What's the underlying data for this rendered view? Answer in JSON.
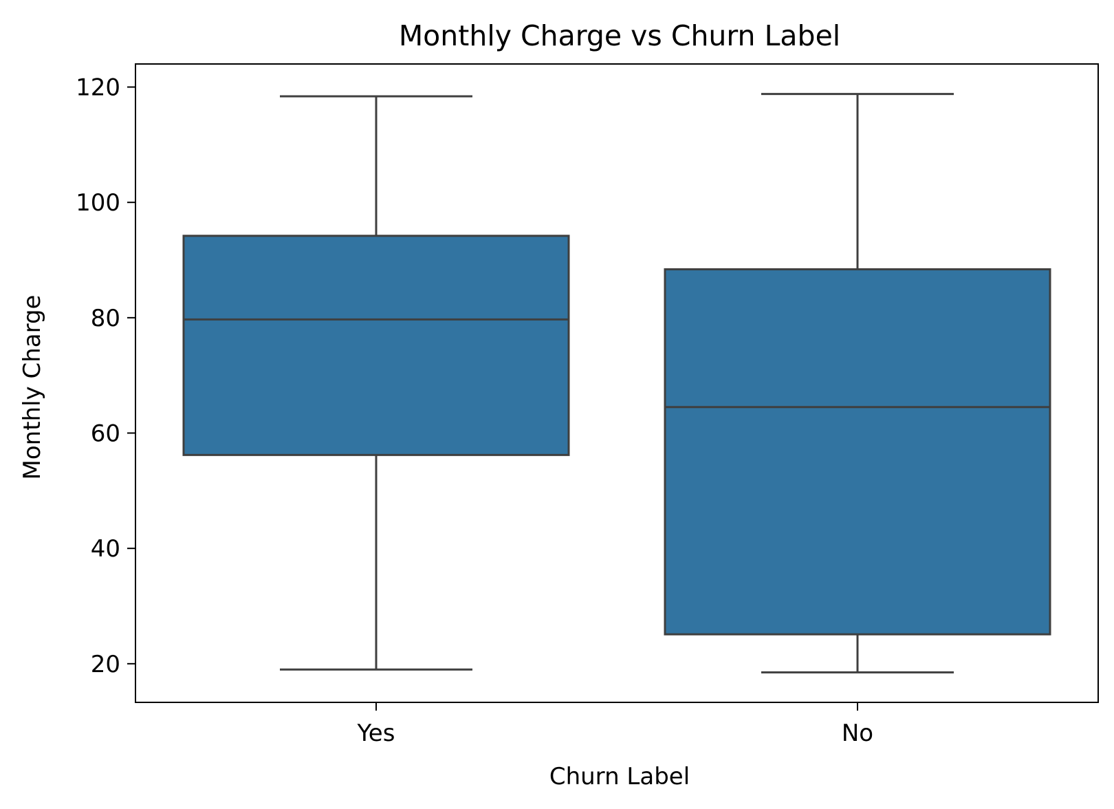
{
  "chart_data": {
    "type": "box",
    "title": "Monthly Charge vs Churn Label",
    "xlabel": "Churn Label",
    "ylabel": "Monthly Charge",
    "categories": [
      "Yes",
      "No"
    ],
    "yticks": [
      20,
      40,
      60,
      80,
      100,
      120
    ],
    "ytick_labels": [
      "20",
      "40",
      "60",
      "80",
      "100",
      "120"
    ],
    "ylim": [
      13.3,
      124.0
    ],
    "grid": false,
    "boxes": [
      {
        "category": "Yes",
        "min": 19.0,
        "q1": 56.2,
        "median": 79.7,
        "q3": 94.2,
        "max": 118.4
      },
      {
        "category": "No",
        "min": 18.5,
        "q1": 25.1,
        "median": 64.5,
        "q3": 88.4,
        "max": 118.8
      }
    ],
    "colors": {
      "box_fill": "#3274a1",
      "box_edge": "#3f3f3f",
      "axes": "#000000"
    }
  }
}
